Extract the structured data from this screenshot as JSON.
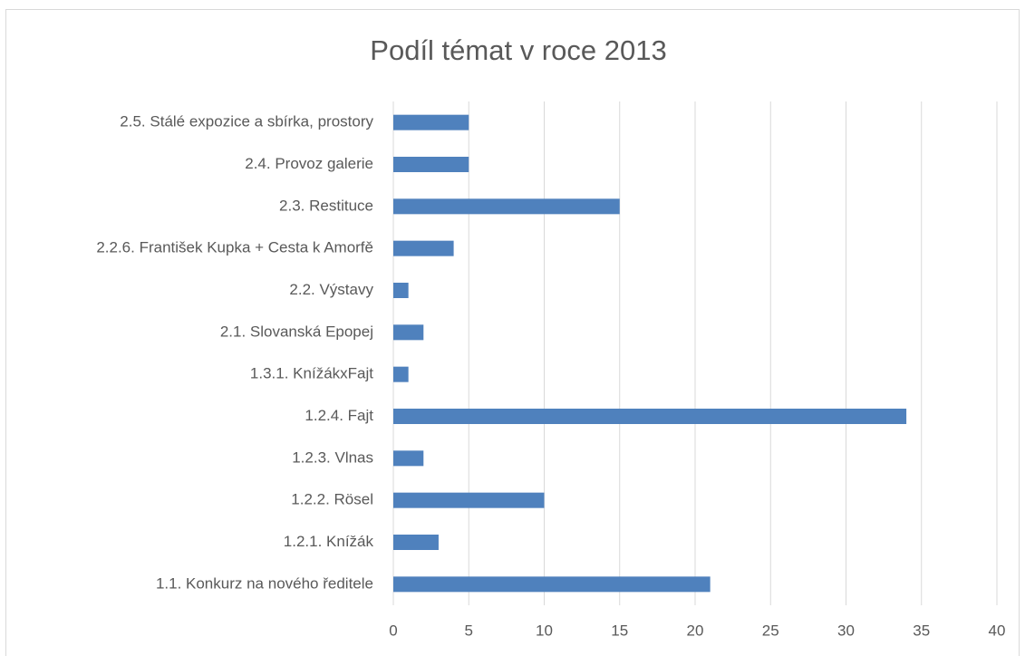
{
  "chart_data": {
    "type": "bar",
    "orientation": "horizontal",
    "title": "Podíl témat v roce 2013",
    "categories": [
      "1.1. Konkurz na nového ředitele",
      "1.2.1. Knížák",
      "1.2.2. Rösel",
      "1.2.3. Vlnas",
      "1.2.4. Fajt",
      "1.3.1. KnížákxFajt",
      "2.1. Slovanská Epopej",
      "2.2. Výstavy",
      "2.2.6. František Kupka + Cesta k Amorfě",
      "2.3. Restituce",
      "2.4. Provoz galerie",
      "2.5. Stálé expozice a sbírka, prostory"
    ],
    "values": [
      21,
      3,
      10,
      2,
      34,
      1,
      2,
      1,
      4,
      15,
      5,
      5
    ],
    "color": "#4f81bd",
    "xlim": [
      0,
      40
    ],
    "xticks": [
      0,
      5,
      10,
      15,
      20,
      25,
      30,
      35,
      40
    ],
    "grid": true
  }
}
